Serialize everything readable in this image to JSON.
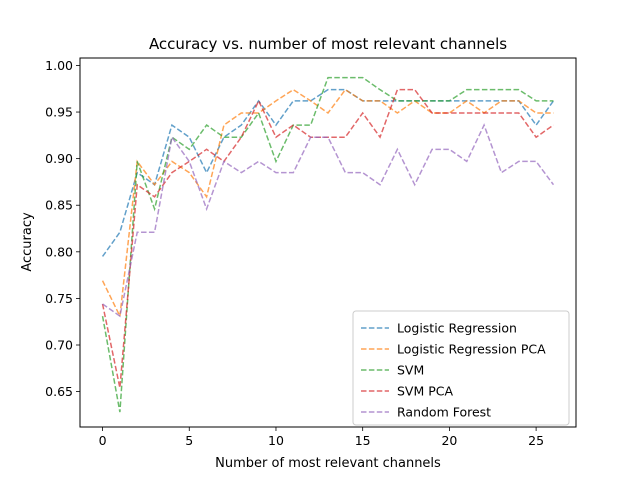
{
  "chart_data": {
    "type": "line",
    "title": "Accuracy vs. number of most relevant channels",
    "xlabel": "Number of most relevant channels",
    "ylabel": "Accuracy",
    "xlim": [
      -1.3,
      27.3
    ],
    "ylim": [
      0.612,
      1.008
    ],
    "xticks": [
      0,
      5,
      10,
      15,
      20,
      25
    ],
    "yticks": [
      0.65,
      0.7,
      0.75,
      0.8,
      0.85,
      0.9,
      0.95,
      1.0
    ],
    "ytick_labels": [
      "0.65",
      "0.70",
      "0.75",
      "0.80",
      "0.85",
      "0.90",
      "0.95",
      "1.00"
    ],
    "grid": false,
    "legend_position": "lower-right",
    "line_style": "dashed",
    "x": [
      0,
      1,
      2,
      3,
      4,
      5,
      6,
      7,
      8,
      9,
      10,
      11,
      12,
      13,
      14,
      15,
      16,
      17,
      18,
      19,
      20,
      21,
      22,
      23,
      24,
      25,
      26
    ],
    "series": [
      {
        "name": "Logistic Regression",
        "color": "#1f77b4",
        "values": [
          0.795,
          0.821,
          0.885,
          0.872,
          0.936,
          0.923,
          0.885,
          0.923,
          0.936,
          0.962,
          0.936,
          0.962,
          0.962,
          0.974,
          0.974,
          0.962,
          0.962,
          0.962,
          0.962,
          0.962,
          0.962,
          0.962,
          0.962,
          0.962,
          0.962,
          0.936,
          0.962
        ]
      },
      {
        "name": "Logistic Regression PCA",
        "color": "#ff7f0e",
        "values": [
          0.769,
          0.731,
          0.897,
          0.872,
          0.897,
          0.885,
          0.859,
          0.936,
          0.949,
          0.949,
          0.962,
          0.974,
          0.962,
          0.949,
          0.974,
          0.962,
          0.962,
          0.949,
          0.962,
          0.949,
          0.949,
          0.962,
          0.949,
          0.962,
          0.962,
          0.949,
          0.949
        ]
      },
      {
        "name": "SVM",
        "color": "#2ca02c",
        "values": [
          0.731,
          0.628,
          0.897,
          0.846,
          0.923,
          0.91,
          0.936,
          0.923,
          0.923,
          0.949,
          0.897,
          0.936,
          0.936,
          0.987,
          0.987,
          0.987,
          0.974,
          0.962,
          0.962,
          0.962,
          0.962,
          0.974,
          0.974,
          0.974,
          0.974,
          0.962,
          0.962
        ]
      },
      {
        "name": "SVM PCA",
        "color": "#d62728",
        "values": [
          0.744,
          0.654,
          0.872,
          0.859,
          0.885,
          0.897,
          0.91,
          0.897,
          0.923,
          0.962,
          0.923,
          0.936,
          0.923,
          0.923,
          0.923,
          0.949,
          0.923,
          0.974,
          0.974,
          0.949,
          0.949,
          0.949,
          0.949,
          0.949,
          0.949,
          0.923,
          0.936
        ]
      },
      {
        "name": "Random Forest",
        "color": "#9467bd",
        "values": [
          0.744,
          0.731,
          0.821,
          0.821,
          0.923,
          0.897,
          0.846,
          0.897,
          0.885,
          0.897,
          0.885,
          0.885,
          0.923,
          0.923,
          0.885,
          0.885,
          0.872,
          0.91,
          0.872,
          0.91,
          0.91,
          0.897,
          0.936,
          0.885,
          0.897,
          0.897,
          0.872
        ]
      }
    ]
  }
}
